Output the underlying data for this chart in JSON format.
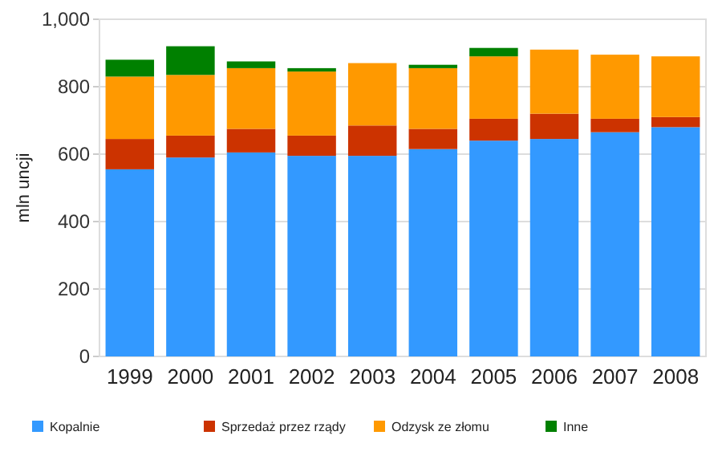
{
  "chart_data": {
    "type": "bar",
    "stacked": true,
    "ylabel": "mln uncji",
    "categories": [
      "1999",
      "2000",
      "2001",
      "2002",
      "2003",
      "2004",
      "2005",
      "2006",
      "2007",
      "2008"
    ],
    "series": [
      {
        "name": "Kopalnie",
        "color": "#3399ff",
        "values": [
          555,
          590,
          605,
          595,
          595,
          615,
          640,
          645,
          665,
          680
        ]
      },
      {
        "name": "Sprzedaż przez rządy",
        "color": "#cc3300",
        "values": [
          90,
          65,
          70,
          60,
          90,
          60,
          65,
          75,
          40,
          30
        ]
      },
      {
        "name": "Odzysk ze złomu",
        "color": "#ff9900",
        "values": [
          185,
          180,
          180,
          190,
          185,
          180,
          185,
          190,
          190,
          180
        ]
      },
      {
        "name": "Inne",
        "color": "#008000",
        "values": [
          50,
          85,
          20,
          10,
          0,
          10,
          25,
          0,
          0,
          0
        ]
      }
    ],
    "ylim": [
      0,
      1000
    ],
    "yticks": [
      0,
      200,
      400,
      600,
      800,
      {
        "value": 1000,
        "label": "1,000"
      }
    ],
    "grid": "y",
    "legend": "bottom"
  }
}
